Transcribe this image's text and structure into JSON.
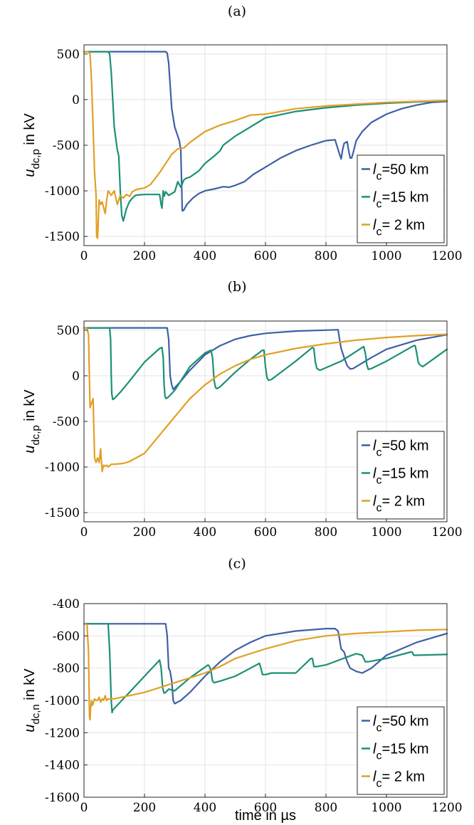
{
  "figure": {
    "xlabel": "time in µs"
  },
  "chart_data": [
    {
      "type": "line",
      "title": "(a)",
      "ylabel_main": "u",
      "ylabel_sub": "dc,p",
      "ylabel_unit": " in kV",
      "xlim": [
        0,
        1200
      ],
      "ylim": [
        -1600,
        600
      ],
      "xticks": [
        0,
        200,
        400,
        600,
        800,
        1000,
        1200
      ],
      "yticks": [
        -1500,
        -1000,
        -500,
        0,
        500
      ],
      "legend_position": "lower-right",
      "grid": true,
      "series": [
        {
          "legend_sub": "c",
          "legend_rest": "=50 km",
          "color": "#3F5FA6",
          "x": [
            0,
            100,
            200,
            270,
            275,
            280,
            290,
            300,
            310,
            315,
            320,
            325,
            330,
            340,
            360,
            380,
            400,
            430,
            460,
            480,
            500,
            530,
            560,
            600,
            650,
            700,
            750,
            800,
            830,
            845,
            850,
            855,
            860,
            870,
            875,
            880,
            885,
            890,
            900,
            920,
            950,
            1000,
            1050,
            1100,
            1150,
            1200
          ],
          "y": [
            525,
            525,
            525,
            525,
            510,
            400,
            -100,
            -300,
            -400,
            -450,
            -550,
            -1220,
            -1210,
            -1150,
            -1080,
            -1030,
            -1000,
            -980,
            -955,
            -960,
            -940,
            -900,
            -820,
            -740,
            -640,
            -560,
            -500,
            -450,
            -440,
            -600,
            -650,
            -550,
            -480,
            -460,
            -560,
            -640,
            -640,
            -580,
            -450,
            -350,
            -250,
            -160,
            -100,
            -60,
            -30,
            -20
          ]
        },
        {
          "legend_sub": "c",
          "legend_rest": "=15 km",
          "color": "#1B9075",
          "x": [
            0,
            50,
            80,
            85,
            90,
            95,
            100,
            110,
            115,
            120,
            125,
            130,
            140,
            150,
            160,
            170,
            180,
            200,
            230,
            250,
            255,
            258,
            262,
            265,
            270,
            280,
            300,
            310,
            320,
            330,
            340,
            350,
            380,
            400,
            430,
            450,
            460,
            500,
            550,
            600,
            700,
            800,
            900,
            1000,
            1100,
            1200
          ],
          "y": [
            525,
            525,
            525,
            500,
            300,
            0,
            -300,
            -550,
            -620,
            -1000,
            -1270,
            -1330,
            -1200,
            -1120,
            -1080,
            -1050,
            -1045,
            -1040,
            -1040,
            -1040,
            -1150,
            -1190,
            -1000,
            -1060,
            -1010,
            -1050,
            -1010,
            -900,
            -960,
            -880,
            -860,
            -850,
            -780,
            -700,
            -620,
            -560,
            -500,
            -400,
            -300,
            -200,
            -130,
            -90,
            -60,
            -40,
            -25,
            -15
          ]
        },
        {
          "legend_sub": "c",
          "legend_rest": "=  2 km",
          "color": "#E1A025",
          "x": [
            0,
            10,
            15,
            20,
            25,
            30,
            35,
            40,
            42,
            45,
            50,
            55,
            60,
            70,
            75,
            80,
            90,
            100,
            110,
            120,
            130,
            140,
            150,
            160,
            170,
            180,
            200,
            220,
            250,
            270,
            290,
            310,
            330,
            350,
            400,
            450,
            500,
            550,
            600,
            700,
            800,
            900,
            1000,
            1100,
            1200
          ],
          "y": [
            525,
            525,
            520,
            500,
            200,
            -300,
            -800,
            -1050,
            -1500,
            -1520,
            -1100,
            -1150,
            -1120,
            -1250,
            -1100,
            -1000,
            -1050,
            -1000,
            -1150,
            -1050,
            -1080,
            -1040,
            -1060,
            -1010,
            -990,
            -980,
            -970,
            -930,
            -800,
            -700,
            -600,
            -540,
            -530,
            -470,
            -350,
            -280,
            -230,
            -170,
            -160,
            -100,
            -70,
            -50,
            -30,
            -20,
            -10
          ]
        }
      ]
    },
    {
      "type": "line",
      "title": "(b)",
      "ylabel_main": "u",
      "ylabel_sub": "dc,p",
      "ylabel_unit": " in kV",
      "xlim": [
        0,
        1200
      ],
      "ylim": [
        -1600,
        600
      ],
      "xticks": [
        0,
        200,
        400,
        600,
        800,
        1000,
        1200
      ],
      "yticks": [
        -1500,
        -1000,
        -500,
        0,
        500
      ],
      "legend_position": "lower-right",
      "grid": true,
      "series": [
        {
          "legend_sub": "c",
          "legend_rest": "=50 km",
          "color": "#3F5FA6",
          "x": [
            0,
            100,
            200,
            275,
            280,
            285,
            290,
            295,
            300,
            320,
            350,
            380,
            400,
            420,
            450,
            500,
            550,
            600,
            700,
            800,
            840,
            845,
            850,
            860,
            870,
            880,
            890,
            900,
            950,
            1000,
            1100,
            1200
          ],
          "y": [
            525,
            525,
            525,
            525,
            400,
            0,
            -100,
            -150,
            -130,
            -60,
            60,
            160,
            230,
            270,
            330,
            400,
            440,
            465,
            490,
            500,
            505,
            400,
            300,
            200,
            110,
            75,
            80,
            100,
            200,
            290,
            390,
            450
          ]
        },
        {
          "legend_sub": "c",
          "legend_rest": "=15 km",
          "color": "#1B9075",
          "x": [
            0,
            50,
            85,
            88,
            90,
            92,
            95,
            100,
            120,
            150,
            200,
            250,
            258,
            262,
            265,
            268,
            272,
            280,
            300,
            350,
            400,
            420,
            425,
            430,
            435,
            440,
            450,
            500,
            550,
            590,
            595,
            600,
            605,
            610,
            620,
            700,
            755,
            760,
            765,
            770,
            780,
            850,
            920,
            925,
            930,
            935,
            940,
            950,
            1000,
            1090,
            1095,
            1100,
            1105,
            1110,
            1120,
            1200
          ],
          "y": [
            525,
            525,
            525,
            400,
            0,
            -200,
            -260,
            -250,
            -180,
            -60,
            150,
            300,
            310,
            200,
            -100,
            -230,
            -250,
            -230,
            -160,
            100,
            250,
            280,
            200,
            -50,
            -130,
            -140,
            -120,
            40,
            180,
            280,
            280,
            100,
            -20,
            -50,
            -40,
            160,
            310,
            300,
            150,
            80,
            60,
            160,
            310,
            320,
            250,
            120,
            70,
            80,
            160,
            330,
            330,
            250,
            150,
            120,
            100,
            290
          ]
        },
        {
          "legend_sub": "c",
          "legend_rest": "=  2 km",
          "color": "#E1A025",
          "x": [
            0,
            10,
            15,
            20,
            25,
            30,
            32,
            35,
            40,
            45,
            50,
            55,
            60,
            65,
            70,
            75,
            80,
            90,
            100,
            130,
            150,
            200,
            250,
            300,
            350,
            400,
            450,
            500,
            550,
            600,
            700,
            800,
            900,
            1000,
            1100,
            1200
          ],
          "y": [
            525,
            520,
            450,
            -350,
            -300,
            -250,
            -500,
            -900,
            -950,
            -900,
            -950,
            -800,
            -1050,
            -980,
            -990,
            -980,
            -1000,
            -970,
            -970,
            -960,
            -940,
            -850,
            -650,
            -450,
            -250,
            -100,
            20,
            110,
            180,
            230,
            300,
            350,
            390,
            420,
            440,
            455
          ]
        }
      ]
    },
    {
      "type": "line",
      "title": "(c)",
      "ylabel_main": "u",
      "ylabel_sub": "dc,n",
      "ylabel_unit": " in kV",
      "xlabel": "time in µs",
      "xlim": [
        0,
        1200
      ],
      "ylim": [
        -1600,
        -400
      ],
      "xticks": [
        0,
        200,
        400,
        600,
        800,
        1000,
        1200
      ],
      "yticks": [
        -1600,
        -1400,
        -1200,
        -1000,
        -800,
        -600,
        -400
      ],
      "legend_position": "lower-right",
      "grid": true,
      "series": [
        {
          "legend_sub": "c",
          "legend_rest": "=50 km",
          "color": "#3F5FA6",
          "x": [
            0,
            100,
            200,
            270,
            275,
            280,
            285,
            290,
            295,
            300,
            310,
            320,
            350,
            400,
            450,
            500,
            550,
            600,
            700,
            800,
            830,
            840,
            845,
            850,
            855,
            860,
            870,
            880,
            900,
            920,
            950,
            1000,
            1100,
            1200
          ],
          "y": [
            -525,
            -525,
            -525,
            -525,
            -600,
            -800,
            -820,
            -880,
            -1000,
            -1020,
            -1010,
            -1000,
            -950,
            -850,
            -760,
            -690,
            -640,
            -600,
            -570,
            -555,
            -555,
            -570,
            -620,
            -680,
            -690,
            -700,
            -760,
            -800,
            -820,
            -830,
            -800,
            -720,
            -640,
            -585
          ]
        },
        {
          "legend_sub": "c",
          "legend_rest": "=15 km",
          "color": "#1B9075",
          "x": [
            0,
            50,
            80,
            85,
            90,
            93,
            95,
            100,
            110,
            150,
            200,
            245,
            250,
            255,
            260,
            265,
            270,
            280,
            300,
            350,
            410,
            415,
            420,
            425,
            430,
            450,
            500,
            550,
            580,
            585,
            590,
            600,
            620,
            700,
            750,
            755,
            760,
            770,
            800,
            900,
            920,
            925,
            930,
            940,
            1000,
            1080,
            1085,
            1090,
            1100,
            1200
          ],
          "y": [
            -525,
            -525,
            -525,
            -700,
            -1000,
            -1075,
            -1060,
            -1050,
            -1030,
            -950,
            -850,
            -760,
            -750,
            -800,
            -920,
            -955,
            -950,
            -930,
            -940,
            -860,
            -780,
            -790,
            -820,
            -880,
            -890,
            -880,
            -850,
            -800,
            -770,
            -800,
            -840,
            -840,
            -830,
            -830,
            -740,
            -740,
            -790,
            -790,
            -780,
            -710,
            -720,
            -740,
            -760,
            -760,
            -740,
            -700,
            -700,
            -720,
            -720,
            -715
          ]
        },
        {
          "legend_sub": "c",
          "legend_rest": "=  2 km",
          "color": "#E1A025",
          "x": [
            0,
            10,
            15,
            18,
            20,
            22,
            25,
            28,
            30,
            35,
            40,
            45,
            50,
            55,
            60,
            65,
            70,
            75,
            80,
            90,
            100,
            150,
            200,
            250,
            300,
            350,
            400,
            450,
            500,
            600,
            700,
            800,
            900,
            1000,
            1100,
            1200
          ],
          "y": [
            -525,
            -530,
            -700,
            -1100,
            -1120,
            -1050,
            -1000,
            -1030,
            -1020,
            -990,
            -1000,
            -1000,
            -980,
            -1010,
            -990,
            -1000,
            -970,
            -1000,
            -990,
            -990,
            -990,
            -970,
            -950,
            -920,
            -890,
            -860,
            -830,
            -790,
            -740,
            -680,
            -630,
            -600,
            -585,
            -575,
            -565,
            -560
          ]
        }
      ]
    }
  ]
}
